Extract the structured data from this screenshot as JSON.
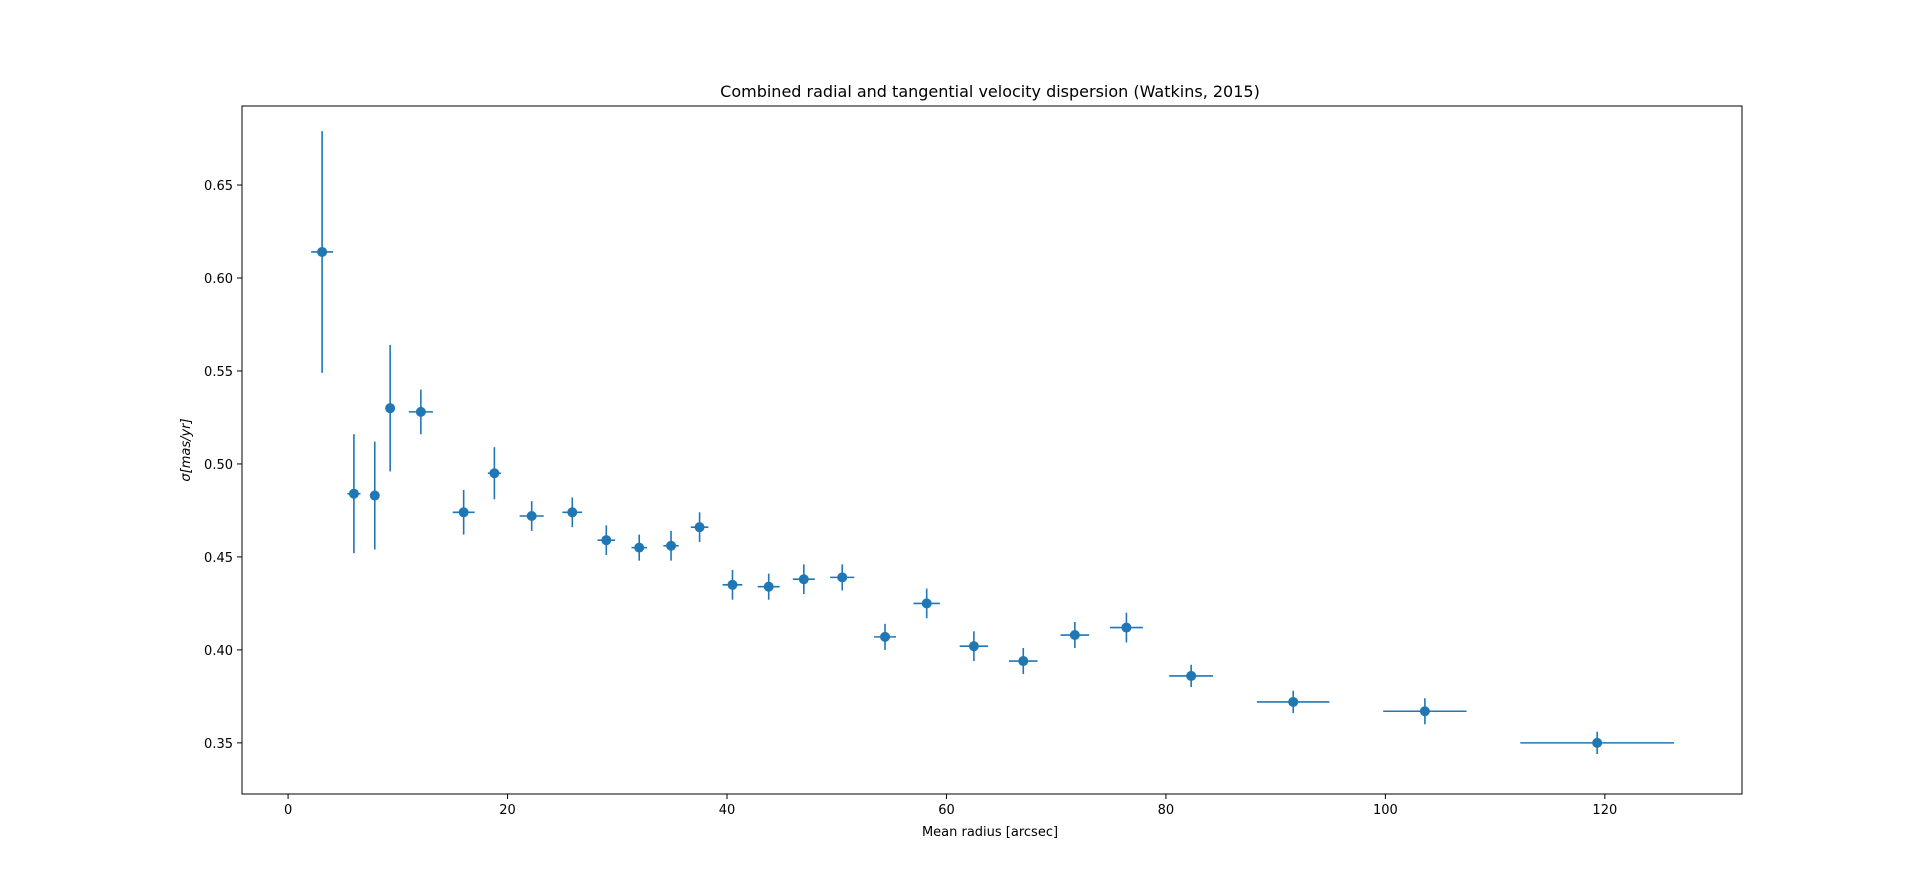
{
  "chart_data": {
    "type": "scatter",
    "title": "Combined radial and tangential velocity dispersion (Watkins, 2015)",
    "xlabel": "Mean radius [arcsec]",
    "ylabel": "σ[mas/yr]",
    "xlim": [
      -4.2,
      132.5
    ],
    "ylim": [
      0.3225,
      0.6925
    ],
    "xticks": [
      0,
      20,
      40,
      60,
      80,
      100,
      120
    ],
    "yticks": [
      0.35,
      0.4,
      0.45,
      0.5,
      0.55,
      0.6,
      0.65
    ],
    "xtick_labels": [
      "0",
      "20",
      "40",
      "60",
      "80",
      "100",
      "120"
    ],
    "ytick_labels": [
      "0.35",
      "0.40",
      "0.45",
      "0.50",
      "0.55",
      "0.60",
      "0.65"
    ],
    "grid": false,
    "color": "#1f77b4",
    "points": [
      {
        "x": 3.1,
        "y": 0.614,
        "xerr": 1.0,
        "yerr": 0.065
      },
      {
        "x": 6.0,
        "y": 0.484,
        "xerr": 0.6,
        "yerr": 0.032
      },
      {
        "x": 7.9,
        "y": 0.483,
        "xerr": 0.4,
        "yerr": 0.029
      },
      {
        "x": 9.3,
        "y": 0.53,
        "xerr": 0.3,
        "yerr": 0.034
      },
      {
        "x": 12.1,
        "y": 0.528,
        "xerr": 1.1,
        "yerr": 0.012
      },
      {
        "x": 16.0,
        "y": 0.474,
        "xerr": 1.0,
        "yerr": 0.012
      },
      {
        "x": 18.8,
        "y": 0.495,
        "xerr": 0.6,
        "yerr": 0.014
      },
      {
        "x": 22.2,
        "y": 0.472,
        "xerr": 1.1,
        "yerr": 0.008
      },
      {
        "x": 25.9,
        "y": 0.474,
        "xerr": 0.9,
        "yerr": 0.008
      },
      {
        "x": 29.0,
        "y": 0.459,
        "xerr": 0.8,
        "yerr": 0.008
      },
      {
        "x": 32.0,
        "y": 0.455,
        "xerr": 0.7,
        "yerr": 0.007
      },
      {
        "x": 34.9,
        "y": 0.456,
        "xerr": 0.7,
        "yerr": 0.008
      },
      {
        "x": 37.5,
        "y": 0.466,
        "xerr": 0.8,
        "yerr": 0.008
      },
      {
        "x": 40.5,
        "y": 0.435,
        "xerr": 0.9,
        "yerr": 0.008
      },
      {
        "x": 43.8,
        "y": 0.434,
        "xerr": 1.0,
        "yerr": 0.007
      },
      {
        "x": 47.0,
        "y": 0.438,
        "xerr": 1.0,
        "yerr": 0.008
      },
      {
        "x": 50.5,
        "y": 0.439,
        "xerr": 1.1,
        "yerr": 0.007
      },
      {
        "x": 54.4,
        "y": 0.407,
        "xerr": 1.0,
        "yerr": 0.007
      },
      {
        "x": 58.2,
        "y": 0.425,
        "xerr": 1.2,
        "yerr": 0.008
      },
      {
        "x": 62.5,
        "y": 0.402,
        "xerr": 1.3,
        "yerr": 0.008
      },
      {
        "x": 67.0,
        "y": 0.394,
        "xerr": 1.3,
        "yerr": 0.007
      },
      {
        "x": 71.7,
        "y": 0.408,
        "xerr": 1.3,
        "yerr": 0.007
      },
      {
        "x": 76.4,
        "y": 0.412,
        "xerr": 1.5,
        "yerr": 0.008
      },
      {
        "x": 82.3,
        "y": 0.386,
        "xerr": 2.0,
        "yerr": 0.006
      },
      {
        "x": 91.6,
        "y": 0.372,
        "xerr": 3.3,
        "yerr": 0.006
      },
      {
        "x": 103.6,
        "y": 0.367,
        "xerr": 3.8,
        "yerr": 0.007
      },
      {
        "x": 119.3,
        "y": 0.35,
        "xerr": 7.0,
        "yerr": 0.006
      }
    ]
  }
}
